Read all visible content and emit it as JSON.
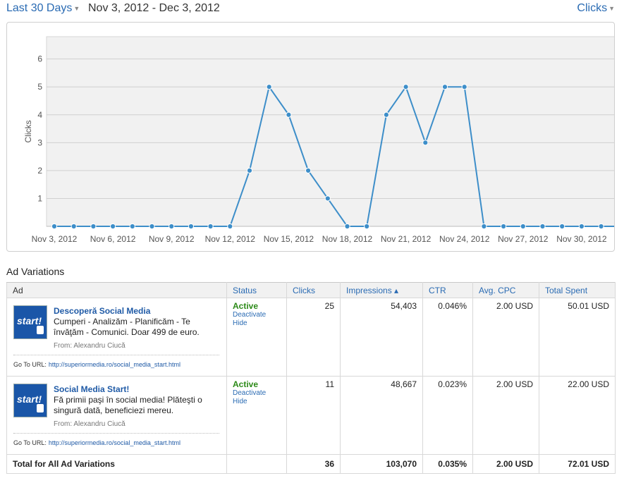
{
  "header": {
    "range_label": "Last 30 Days",
    "date_range": "Nov 3, 2012 - Dec 3, 2012",
    "metric_label": "Clicks"
  },
  "colors": {
    "line": "#3d8ec9",
    "link": "#2a6bb3",
    "active": "#2c8a18",
    "plot_bg": "#f1f1f1"
  },
  "chart_data": {
    "type": "line",
    "ylabel": "Clicks",
    "xlabel": "",
    "ylim": [
      0,
      6.8
    ],
    "yticks": [
      1,
      2,
      3,
      4,
      5,
      6
    ],
    "x_tick_labels": [
      "Nov 3, 2012",
      "Nov 6, 2012",
      "Nov 9, 2012",
      "Nov 12, 2012",
      "Nov 15, 2012",
      "Nov 18, 2012",
      "Nov 21, 2012",
      "Nov 24, 2012",
      "Nov 27, 2012",
      "Nov 30, 2012"
    ],
    "x": [
      "2012-11-03",
      "2012-11-04",
      "2012-11-05",
      "2012-11-06",
      "2012-11-07",
      "2012-11-08",
      "2012-11-09",
      "2012-11-10",
      "2012-11-11",
      "2012-11-12",
      "2012-11-13",
      "2012-11-14",
      "2012-11-15",
      "2012-11-16",
      "2012-11-17",
      "2012-11-18",
      "2012-11-19",
      "2012-11-20",
      "2012-11-21",
      "2012-11-22",
      "2012-11-23",
      "2012-11-24",
      "2012-11-25",
      "2012-11-26",
      "2012-11-27",
      "2012-11-28",
      "2012-11-29",
      "2012-11-30",
      "2012-12-01",
      "2012-12-02",
      "2012-12-03"
    ],
    "values": [
      0,
      0,
      0,
      0,
      0,
      0,
      0,
      0,
      0,
      0,
      2,
      5,
      4,
      2,
      1,
      0,
      0,
      4,
      5,
      3,
      5,
      5,
      0,
      0,
      0,
      0,
      0,
      0,
      0,
      0,
      0
    ],
    "grid": true,
    "legend": "none"
  },
  "variations": {
    "title": "Ad Variations",
    "columns": {
      "ad": "Ad",
      "status": "Status",
      "clicks": "Clicks",
      "impressions": "Impressions ▴",
      "ctr": "CTR",
      "avg_cpc": "Avg. CPC",
      "total_spent": "Total Spent"
    },
    "rows": [
      {
        "thumb_text": "start!",
        "title": "Descoperă Social Media",
        "body": "Cumperi - Analizăm - Planificăm - Te învăţăm - Comunici. Doar 499 de euro.",
        "from": "From: Alexandru Ciucă",
        "url_label": "Go To URL:",
        "url": "http://superiormedia.ro/social_media_start.html",
        "status": "Active",
        "deactivate": "Deactivate",
        "hide": "Hide",
        "clicks": "25",
        "impressions": "54,403",
        "ctr": "0.046%",
        "avg_cpc": "2.00 USD",
        "total_spent": "50.01 USD"
      },
      {
        "thumb_text": "start!",
        "title": "Social Media Start!",
        "body": "Fă primii paşi în social media! Plăteşti o singură dată, beneficiezi mereu.",
        "from": "From: Alexandru Ciucă",
        "url_label": "Go To URL:",
        "url": "http://superiormedia.ro/social_media_start.html",
        "status": "Active",
        "deactivate": "Deactivate",
        "hide": "Hide",
        "clicks": "11",
        "impressions": "48,667",
        "ctr": "0.023%",
        "avg_cpc": "2.00 USD",
        "total_spent": "22.00 USD"
      }
    ],
    "total": {
      "label": "Total for All Ad Variations",
      "clicks": "36",
      "impressions": "103,070",
      "ctr": "0.035%",
      "avg_cpc": "2.00 USD",
      "total_spent": "72.01 USD"
    }
  }
}
